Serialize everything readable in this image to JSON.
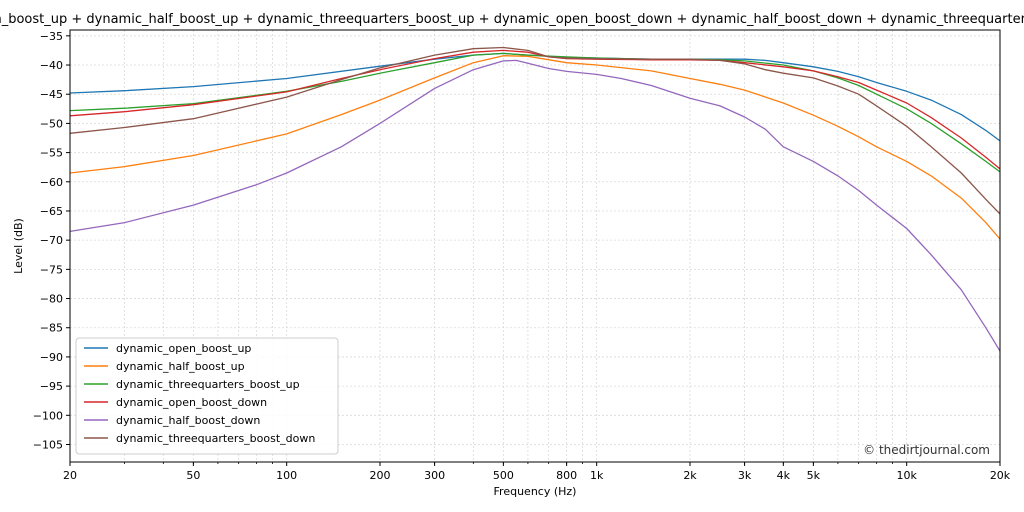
{
  "chart_data": {
    "type": "line",
    "title": "dynamic_open_boost_up + dynamic_half_boost_up + dynamic_threequarters_boost_up + dynamic_open_boost_down + dynamic_half_boost_down + dynamic_threequarters_boost_down",
    "xlabel": "Frequency (Hz)",
    "ylabel": "Level (dB)",
    "xscale": "log",
    "xlim": [
      20,
      20000
    ],
    "ylim": [
      -108,
      -34
    ],
    "grid": true,
    "legend_position": "lower-left",
    "watermark": "© thedirtjournal.com",
    "xticks": [
      {
        "value": 20,
        "label": "20"
      },
      {
        "value": 50,
        "label": "50"
      },
      {
        "value": 100,
        "label": "100"
      },
      {
        "value": 200,
        "label": "200"
      },
      {
        "value": 300,
        "label": "300"
      },
      {
        "value": 500,
        "label": "500"
      },
      {
        "value": 800,
        "label": "800"
      },
      {
        "value": 1000,
        "label": "1k"
      },
      {
        "value": 2000,
        "label": "2k"
      },
      {
        "value": 3000,
        "label": "3k"
      },
      {
        "value": 4000,
        "label": "4k"
      },
      {
        "value": 5000,
        "label": "5k"
      },
      {
        "value": 10000,
        "label": "10k"
      },
      {
        "value": 20000,
        "label": "20k"
      }
    ],
    "yticks": [
      {
        "value": -35,
        "label": "−35"
      },
      {
        "value": -40,
        "label": "−40"
      },
      {
        "value": -45,
        "label": "−45"
      },
      {
        "value": -50,
        "label": "−50"
      },
      {
        "value": -55,
        "label": "−55"
      },
      {
        "value": -60,
        "label": "−60"
      },
      {
        "value": -65,
        "label": "−65"
      },
      {
        "value": -70,
        "label": "−70"
      },
      {
        "value": -75,
        "label": "−75"
      },
      {
        "value": -80,
        "label": "−80"
      },
      {
        "value": -85,
        "label": "−85"
      },
      {
        "value": -90,
        "label": "−90"
      },
      {
        "value": -95,
        "label": "−95"
      },
      {
        "value": -100,
        "label": "−100"
      },
      {
        "value": -105,
        "label": "−105"
      }
    ],
    "series": [
      {
        "name": "dynamic_open_boost_up",
        "color": "#1f77b4",
        "points": [
          [
            20,
            -44.8
          ],
          [
            30,
            -44.4
          ],
          [
            50,
            -43.7
          ],
          [
            100,
            -42.3
          ],
          [
            200,
            -40.2
          ],
          [
            300,
            -39.0
          ],
          [
            400,
            -38.3
          ],
          [
            500,
            -38.0
          ],
          [
            600,
            -38.3
          ],
          [
            800,
            -38.7
          ],
          [
            1000,
            -38.8
          ],
          [
            1500,
            -39.0
          ],
          [
            2000,
            -39.0
          ],
          [
            2500,
            -39.0
          ],
          [
            3000,
            -39.0
          ],
          [
            3500,
            -39.2
          ],
          [
            4000,
            -39.6
          ],
          [
            5000,
            -40.3
          ],
          [
            6000,
            -41.1
          ],
          [
            7000,
            -42.0
          ],
          [
            8000,
            -43.0
          ],
          [
            10000,
            -44.5
          ],
          [
            12000,
            -46.0
          ],
          [
            15000,
            -48.5
          ],
          [
            18000,
            -51.2
          ],
          [
            20000,
            -53.0
          ]
        ]
      },
      {
        "name": "dynamic_half_boost_up",
        "color": "#ff7f0e",
        "points": [
          [
            20,
            -58.5
          ],
          [
            30,
            -57.4
          ],
          [
            50,
            -55.5
          ],
          [
            100,
            -51.8
          ],
          [
            150,
            -48.5
          ],
          [
            200,
            -46.0
          ],
          [
            300,
            -42.2
          ],
          [
            400,
            -39.6
          ],
          [
            500,
            -38.4
          ],
          [
            600,
            -38.5
          ],
          [
            800,
            -39.6
          ],
          [
            1000,
            -40.0
          ],
          [
            1500,
            -41.0
          ],
          [
            2000,
            -42.3
          ],
          [
            2500,
            -43.3
          ],
          [
            3000,
            -44.3
          ],
          [
            4000,
            -46.5
          ],
          [
            5000,
            -48.6
          ],
          [
            6000,
            -50.5
          ],
          [
            7000,
            -52.3
          ],
          [
            8000,
            -54.0
          ],
          [
            10000,
            -56.5
          ],
          [
            12000,
            -59.0
          ],
          [
            15000,
            -62.8
          ],
          [
            18000,
            -67.0
          ],
          [
            20000,
            -69.8
          ]
        ]
      },
      {
        "name": "dynamic_threequarters_boost_up",
        "color": "#2ca02c",
        "points": [
          [
            20,
            -47.8
          ],
          [
            30,
            -47.4
          ],
          [
            50,
            -46.6
          ],
          [
            100,
            -44.5
          ],
          [
            150,
            -42.8
          ],
          [
            200,
            -41.4
          ],
          [
            300,
            -39.6
          ],
          [
            400,
            -38.3
          ],
          [
            500,
            -38.0
          ],
          [
            600,
            -38.3
          ],
          [
            800,
            -38.6
          ],
          [
            1000,
            -38.8
          ],
          [
            1500,
            -39.0
          ],
          [
            2000,
            -39.0
          ],
          [
            2500,
            -39.1
          ],
          [
            3000,
            -39.3
          ],
          [
            4000,
            -40.0
          ],
          [
            5000,
            -41.0
          ],
          [
            6000,
            -42.2
          ],
          [
            7000,
            -43.5
          ],
          [
            8000,
            -45.0
          ],
          [
            10000,
            -47.5
          ],
          [
            12000,
            -50.0
          ],
          [
            15000,
            -53.5
          ],
          [
            18000,
            -56.5
          ],
          [
            20000,
            -58.3
          ]
        ]
      },
      {
        "name": "dynamic_open_boost_down",
        "color": "#d62728",
        "points": [
          [
            20,
            -48.7
          ],
          [
            30,
            -48.0
          ],
          [
            50,
            -46.8
          ],
          [
            100,
            -44.6
          ],
          [
            150,
            -42.3
          ],
          [
            200,
            -40.8
          ],
          [
            300,
            -38.9
          ],
          [
            400,
            -37.8
          ],
          [
            500,
            -37.5
          ],
          [
            600,
            -37.8
          ],
          [
            700,
            -38.6
          ],
          [
            800,
            -38.9
          ],
          [
            1000,
            -39.0
          ],
          [
            1500,
            -39.1
          ],
          [
            2000,
            -39.1
          ],
          [
            2500,
            -39.2
          ],
          [
            3000,
            -39.6
          ],
          [
            4000,
            -40.3
          ],
          [
            5000,
            -41.0
          ],
          [
            6000,
            -42.0
          ],
          [
            7000,
            -43.0
          ],
          [
            8000,
            -44.3
          ],
          [
            10000,
            -46.5
          ],
          [
            12000,
            -49.0
          ],
          [
            15000,
            -52.5
          ],
          [
            18000,
            -55.8
          ],
          [
            20000,
            -57.8
          ]
        ]
      },
      {
        "name": "dynamic_half_boost_down",
        "color": "#9467bd",
        "points": [
          [
            20,
            -68.5
          ],
          [
            30,
            -67.0
          ],
          [
            50,
            -64.0
          ],
          [
            80,
            -60.5
          ],
          [
            100,
            -58.5
          ],
          [
            150,
            -54.0
          ],
          [
            200,
            -50.0
          ],
          [
            300,
            -44.0
          ],
          [
            400,
            -40.8
          ],
          [
            500,
            -39.3
          ],
          [
            550,
            -39.2
          ],
          [
            600,
            -39.7
          ],
          [
            700,
            -40.6
          ],
          [
            800,
            -41.1
          ],
          [
            1000,
            -41.6
          ],
          [
            1200,
            -42.3
          ],
          [
            1500,
            -43.5
          ],
          [
            2000,
            -45.7
          ],
          [
            2500,
            -47.0
          ],
          [
            3000,
            -48.9
          ],
          [
            3500,
            -51.0
          ],
          [
            4000,
            -54.0
          ],
          [
            5000,
            -56.5
          ],
          [
            6000,
            -59.0
          ],
          [
            7000,
            -61.5
          ],
          [
            8000,
            -64.0
          ],
          [
            10000,
            -68.0
          ],
          [
            12000,
            -72.5
          ],
          [
            15000,
            -78.5
          ],
          [
            18000,
            -85.0
          ],
          [
            20000,
            -89.0
          ]
        ]
      },
      {
        "name": "dynamic_threequarters_boost_down",
        "color": "#8c564b",
        "points": [
          [
            20,
            -51.7
          ],
          [
            30,
            -50.7
          ],
          [
            50,
            -49.2
          ],
          [
            100,
            -45.5
          ],
          [
            150,
            -42.5
          ],
          [
            200,
            -40.5
          ],
          [
            300,
            -38.3
          ],
          [
            400,
            -37.2
          ],
          [
            500,
            -37.0
          ],
          [
            600,
            -37.5
          ],
          [
            700,
            -38.6
          ],
          [
            800,
            -38.8
          ],
          [
            1000,
            -38.9
          ],
          [
            1500,
            -39.0
          ],
          [
            2000,
            -39.0
          ],
          [
            2500,
            -39.2
          ],
          [
            3000,
            -39.8
          ],
          [
            3500,
            -40.8
          ],
          [
            4000,
            -41.4
          ],
          [
            5000,
            -42.2
          ],
          [
            6000,
            -43.6
          ],
          [
            7000,
            -45.0
          ],
          [
            8000,
            -47.0
          ],
          [
            10000,
            -50.5
          ],
          [
            12000,
            -54.0
          ],
          [
            15000,
            -58.5
          ],
          [
            18000,
            -63.0
          ],
          [
            20000,
            -65.5
          ]
        ]
      }
    ]
  }
}
